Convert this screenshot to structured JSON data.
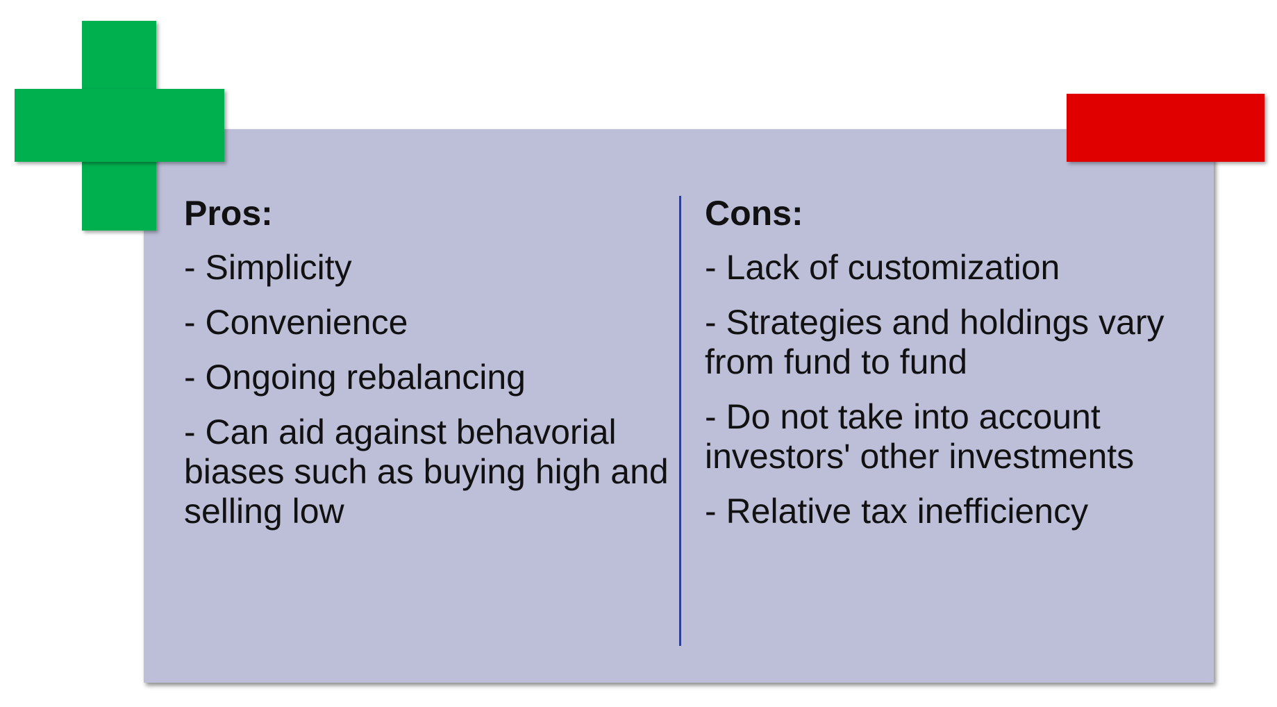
{
  "pros": {
    "title": "Pros:",
    "items": [
      "- Simplicity",
      "- Convenience",
      "- Ongoing rebalancing",
      "- Can aid against behavorial biases such as buying high and selling low"
    ]
  },
  "cons": {
    "title": "Cons:",
    "items": [
      "- Lack of customization",
      "- Strategies and holdings vary from fund to fund",
      "- Do not take into account investors' other investments",
      "- Relative tax inefficiency"
    ]
  }
}
